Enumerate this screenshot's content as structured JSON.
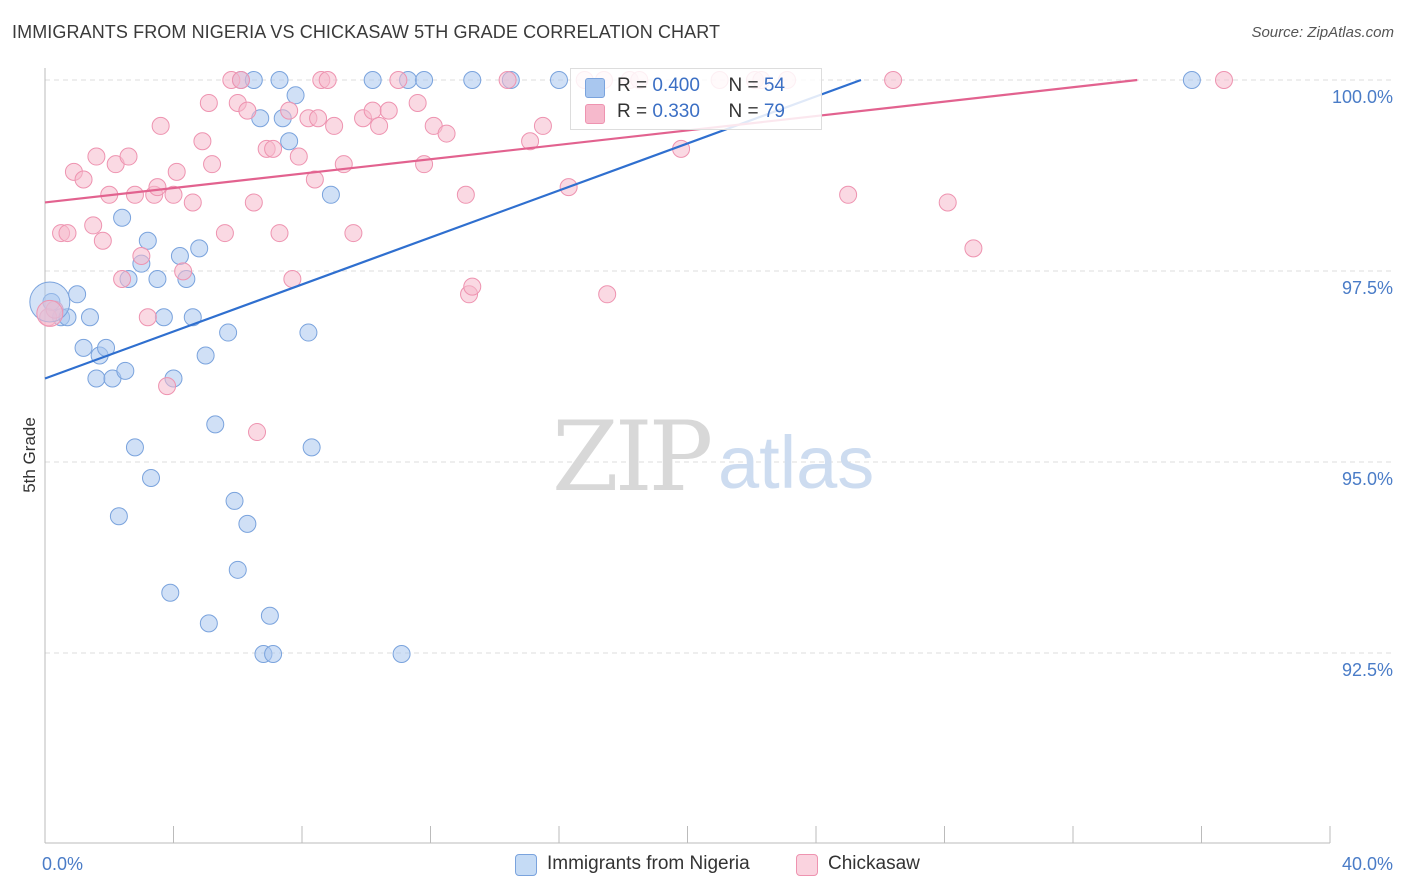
{
  "title": "IMMIGRANTS FROM NIGERIA VS CHICKASAW 5TH GRADE CORRELATION CHART",
  "source": "Source: ZipAtlas.com",
  "watermark": {
    "zip": "ZIP",
    "atlas": "atlas"
  },
  "legend_stats": [
    {
      "r_label": "R = ",
      "r_value": "0.400",
      "n_label": "N = ",
      "n_value": "54",
      "color": "#a9c7ef"
    },
    {
      "r_label": "R = ",
      "r_value": "0.330",
      "n_label": "N = ",
      "n_value": "79",
      "color": "#f6b9cc"
    }
  ],
  "colors": {
    "blue_fill": "#a9c7ef",
    "blue_stroke": "#7aa3dd",
    "blue_line": "#2f6fcf",
    "pink_fill": "#f6b9cc",
    "pink_stroke": "#ee93b0",
    "pink_line": "#e2628f",
    "axis_label": "#4a7cc7",
    "grid": "#dddddd"
  },
  "chart_data": {
    "type": "scatter",
    "title": "IMMIGRANTS FROM NIGERIA VS CHICKASAW 5TH GRADE CORRELATION CHART",
    "xlabel": "",
    "ylabel": "5th Grade",
    "xlim": [
      0,
      40
    ],
    "ylim": [
      90.2,
      100.4
    ],
    "x_tick_labels": [
      "0.0%",
      "40.0%"
    ],
    "y_ticks": [
      92.5,
      95.0,
      97.5,
      100.0
    ],
    "y_tick_labels": [
      "92.5%",
      "95.0%",
      "97.5%",
      "100.0%"
    ],
    "grid": "horizontal dashed",
    "legend": "bottom-center",
    "series": [
      {
        "name": "Immigrants from Nigeria",
        "R": 0.4,
        "N": 54,
        "trend": {
          "x": [
            0.0,
            25.4
          ],
          "y": [
            96.1,
            100.0
          ]
        },
        "points": [
          [
            0.2,
            97.1
          ],
          [
            0.5,
            96.9
          ],
          [
            0.7,
            96.9
          ],
          [
            1.0,
            97.2
          ],
          [
            1.2,
            96.5
          ],
          [
            1.4,
            96.9
          ],
          [
            1.6,
            96.1
          ],
          [
            1.7,
            96.4
          ],
          [
            1.9,
            96.5
          ],
          [
            2.1,
            96.1
          ],
          [
            2.3,
            94.3
          ],
          [
            2.4,
            98.2
          ],
          [
            2.5,
            96.2
          ],
          [
            2.6,
            97.4
          ],
          [
            2.8,
            95.2
          ],
          [
            3.0,
            97.6
          ],
          [
            3.2,
            97.9
          ],
          [
            3.3,
            94.8
          ],
          [
            3.5,
            97.4
          ],
          [
            3.7,
            96.9
          ],
          [
            3.9,
            93.3
          ],
          [
            4.0,
            96.1
          ],
          [
            4.2,
            97.7
          ],
          [
            4.4,
            97.4
          ],
          [
            4.6,
            96.9
          ],
          [
            4.8,
            97.8
          ],
          [
            5.0,
            96.4
          ],
          [
            5.1,
            92.9
          ],
          [
            5.3,
            95.5
          ],
          [
            5.7,
            96.7
          ],
          [
            5.9,
            94.5
          ],
          [
            6.0,
            93.6
          ],
          [
            6.1,
            100.0
          ],
          [
            6.3,
            94.2
          ],
          [
            6.5,
            100.0
          ],
          [
            6.7,
            99.5
          ],
          [
            6.8,
            92.5
          ],
          [
            7.0,
            93.0
          ],
          [
            7.1,
            92.5
          ],
          [
            7.3,
            100.0
          ],
          [
            7.4,
            99.5
          ],
          [
            7.6,
            99.2
          ],
          [
            7.8,
            99.8
          ],
          [
            8.2,
            96.7
          ],
          [
            8.3,
            95.2
          ],
          [
            8.9,
            98.5
          ],
          [
            10.2,
            100.0
          ],
          [
            11.1,
            92.5
          ],
          [
            11.3,
            100.0
          ],
          [
            11.8,
            100.0
          ],
          [
            13.3,
            100.0
          ],
          [
            14.5,
            100.0
          ],
          [
            16.0,
            100.0
          ],
          [
            35.7,
            100.0
          ]
        ]
      },
      {
        "name": "Chickasaw",
        "R": 0.33,
        "N": 79,
        "trend": {
          "x": [
            0.0,
            34.0
          ],
          "y": [
            98.4,
            100.0
          ]
        },
        "points": [
          [
            0.1,
            96.9
          ],
          [
            0.3,
            97.0
          ],
          [
            0.5,
            98.0
          ],
          [
            0.7,
            98.0
          ],
          [
            0.9,
            98.8
          ],
          [
            1.2,
            98.7
          ],
          [
            1.5,
            98.1
          ],
          [
            1.6,
            99.0
          ],
          [
            1.8,
            97.9
          ],
          [
            2.0,
            98.5
          ],
          [
            2.2,
            98.9
          ],
          [
            2.4,
            97.4
          ],
          [
            2.6,
            99.0
          ],
          [
            2.8,
            98.5
          ],
          [
            3.0,
            97.7
          ],
          [
            3.2,
            96.9
          ],
          [
            3.4,
            98.5
          ],
          [
            3.5,
            98.6
          ],
          [
            3.6,
            99.4
          ],
          [
            3.8,
            96.0
          ],
          [
            4.0,
            98.5
          ],
          [
            4.1,
            98.8
          ],
          [
            4.3,
            97.5
          ],
          [
            4.6,
            98.4
          ],
          [
            4.9,
            99.2
          ],
          [
            5.1,
            99.7
          ],
          [
            5.2,
            98.9
          ],
          [
            5.6,
            98.0
          ],
          [
            5.8,
            100.0
          ],
          [
            6.0,
            99.7
          ],
          [
            6.1,
            100.0
          ],
          [
            6.3,
            99.6
          ],
          [
            6.5,
            98.4
          ],
          [
            6.6,
            95.4
          ],
          [
            6.9,
            99.1
          ],
          [
            7.1,
            99.1
          ],
          [
            7.3,
            98.0
          ],
          [
            7.6,
            99.6
          ],
          [
            7.7,
            97.4
          ],
          [
            7.9,
            99.0
          ],
          [
            8.2,
            99.5
          ],
          [
            8.4,
            98.7
          ],
          [
            8.5,
            99.5
          ],
          [
            8.6,
            100.0
          ],
          [
            8.8,
            100.0
          ],
          [
            9.0,
            99.4
          ],
          [
            9.3,
            98.9
          ],
          [
            9.6,
            98.0
          ],
          [
            9.9,
            99.5
          ],
          [
            10.2,
            99.6
          ],
          [
            10.4,
            99.4
          ],
          [
            10.7,
            99.6
          ],
          [
            11.0,
            100.0
          ],
          [
            11.6,
            99.7
          ],
          [
            11.8,
            98.9
          ],
          [
            12.1,
            99.4
          ],
          [
            12.5,
            99.3
          ],
          [
            13.1,
            98.5
          ],
          [
            13.2,
            97.2
          ],
          [
            13.3,
            97.3
          ],
          [
            14.4,
            100.0
          ],
          [
            15.1,
            99.2
          ],
          [
            15.5,
            99.4
          ],
          [
            16.3,
            98.6
          ],
          [
            16.8,
            100.0
          ],
          [
            17.4,
            100.0
          ],
          [
            17.5,
            97.2
          ],
          [
            18.2,
            100.0
          ],
          [
            18.5,
            100.0
          ],
          [
            19.8,
            99.1
          ],
          [
            21.0,
            100.0
          ],
          [
            22.1,
            100.0
          ],
          [
            22.3,
            100.0
          ],
          [
            23.1,
            100.0
          ],
          [
            25.0,
            98.5
          ],
          [
            26.4,
            100.0
          ],
          [
            28.1,
            98.4
          ],
          [
            28.9,
            97.8
          ],
          [
            36.7,
            100.0
          ]
        ]
      }
    ]
  },
  "bottom_legend": [
    {
      "label": "Immigrants from Nigeria",
      "color": "#a9c7ef"
    },
    {
      "label": "Chickasaw",
      "color": "#f6b9cc"
    }
  ]
}
